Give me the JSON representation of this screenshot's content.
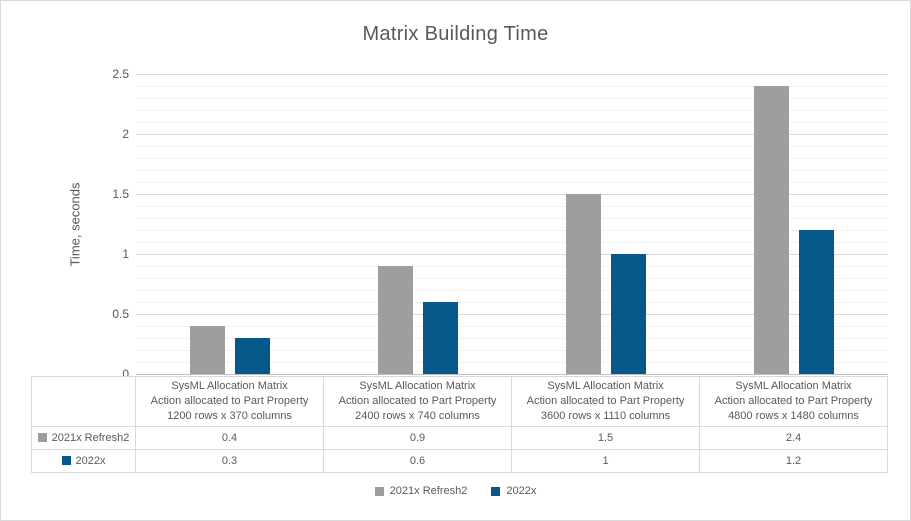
{
  "chart_data": {
    "type": "bar",
    "title": "Matrix Building Time",
    "ylabel": "Time, seconds",
    "ylim": [
      0,
      2.5
    ],
    "ytick_step": 0.5,
    "yticks": [
      "0",
      "0.5",
      "1",
      "1.5",
      "2",
      "2.5"
    ],
    "minor_grid_step": 0.1,
    "grid": true,
    "legend_position": "bottom",
    "data_table_shown": true,
    "categories": [
      [
        "SysML Allocation Matrix",
        "Action allocated to Part Property",
        "1200 rows x 370 columns"
      ],
      [
        "SysML Allocation Matrix",
        "Action allocated to Part Property",
        "2400 rows x 740 columns"
      ],
      [
        "SysML Allocation Matrix",
        "Action allocated to Part Property",
        "3600 rows x 1110 columns"
      ],
      [
        "SysML Allocation Matrix",
        "Action allocated to Part Property",
        "4800 rows x 1480 columns"
      ]
    ],
    "series": [
      {
        "name": "2021x Refresh2",
        "color": "#9e9e9e",
        "values": [
          0.4,
          0.9,
          1.5,
          2.4
        ],
        "display_values": [
          "0.4",
          "0.9",
          "1.5",
          "2.4"
        ]
      },
      {
        "name": "2022x",
        "color": "#07588a",
        "values": [
          0.3,
          0.6,
          1,
          1.2
        ],
        "display_values": [
          "0.3",
          "0.6",
          "1",
          "1.2"
        ]
      }
    ]
  },
  "colors": {
    "major_grid": "#d9d9d9",
    "minor_grid": "#f2f2f2",
    "frame_border": "#d9d9d9",
    "axis_line": "#bfbfbf",
    "text": "#595959"
  }
}
